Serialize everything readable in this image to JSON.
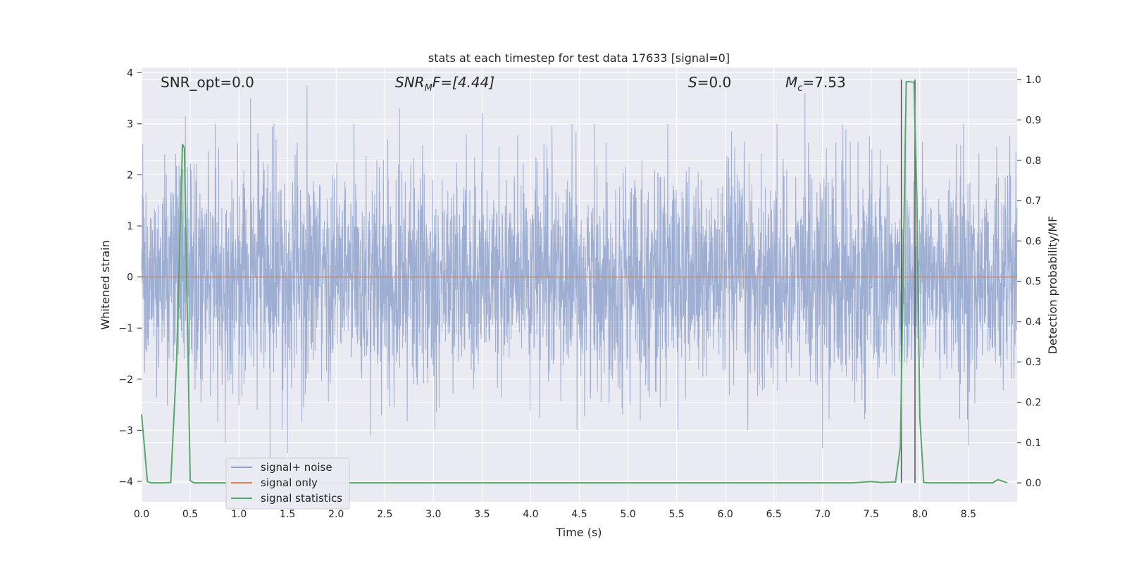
{
  "chart_data": {
    "type": "line",
    "title": "stats at each timestep for test data 17633 [signal=0]",
    "xlabel": "Time (s)",
    "ylabel": "Whitened strain",
    "y2label": "Detection probability/MF",
    "xlim": [
      0.0,
      9.0
    ],
    "ylim": [
      -4.4,
      4.1
    ],
    "y2lim": [
      -0.047,
      1.03
    ],
    "xticks": [
      "0.0",
      "0.5",
      "1.0",
      "1.5",
      "2.0",
      "2.5",
      "3.0",
      "3.5",
      "4.0",
      "4.5",
      "5.0",
      "5.5",
      "6.0",
      "6.5",
      "7.0",
      "7.5",
      "8.0",
      "8.5"
    ],
    "yticks": [
      "4",
      "3",
      "2",
      "1",
      "0",
      "−1",
      "−2",
      "−3",
      "−4"
    ],
    "y2ticks": [
      "1.0",
      "0.9",
      "0.8",
      "0.7",
      "0.6",
      "0.5",
      "0.4",
      "0.3",
      "0.2",
      "0.1",
      "0.0"
    ],
    "grid": true,
    "legend_position": "lower-left",
    "annotations": {
      "snr_opt": "SNR_opt=0.0",
      "snr_mf_main": "SNR",
      "snr_mf_sub": "M",
      "snr_mf_tail": "F=[4.44]",
      "s_label": "S",
      "s_value": "=0.0",
      "mc_main": "M",
      "mc_sub": "c",
      "mc_value": "=7.53"
    },
    "series": [
      {
        "name": "signal+ noise",
        "color": "#8fa3cc",
        "axis": "left",
        "description_points": "dense whitened noise, approx. gaussian with sigma ~1.05, spikes up to ~3.7 and down to ~-3.6",
        "x_range": [
          0.0,
          9.0
        ],
        "sigma": 1.05,
        "spikes": [
          {
            "x": 0.45,
            "y": 3.15
          },
          {
            "x": 1.12,
            "y": 3.5
          },
          {
            "x": 1.7,
            "y": 3.75
          },
          {
            "x": 2.65,
            "y": 3.3
          },
          {
            "x": 3.5,
            "y": 3.2
          },
          {
            "x": 6.82,
            "y": 3.6
          },
          {
            "x": 1.32,
            "y": -3.6
          },
          {
            "x": 1.5,
            "y": -3.45
          },
          {
            "x": 7.0,
            "y": -3.35
          },
          {
            "x": 8.5,
            "y": -3.3
          },
          {
            "x": 0.86,
            "y": -3.25
          },
          {
            "x": 2.35,
            "y": -3.1
          }
        ]
      },
      {
        "name": "signal only",
        "color": "#dd8452",
        "axis": "left",
        "x": [
          0.0,
          9.0
        ],
        "y": [
          0.0,
          0.0
        ]
      },
      {
        "name": "signal statistics",
        "color": "#55a868",
        "axis": "right",
        "x": [
          0.0,
          0.06,
          0.1,
          0.2,
          0.3,
          0.36,
          0.42,
          0.44,
          0.5,
          0.54,
          0.6,
          1.0,
          2.0,
          3.0,
          4.0,
          5.0,
          6.0,
          7.0,
          7.3,
          7.5,
          7.6,
          7.75,
          7.8,
          7.86,
          7.9,
          7.94,
          7.97,
          8.0,
          8.04,
          8.1,
          8.2,
          8.6,
          8.7,
          8.75,
          8.8,
          8.9
        ],
        "y": [
          0.17,
          0.003,
          0.0,
          0.0,
          0.001,
          0.3,
          0.84,
          0.83,
          0.005,
          0.0,
          0.0,
          0.0,
          0.0,
          0.0,
          0.0,
          0.0,
          0.0,
          0.0,
          0.0,
          0.003,
          0.001,
          0.002,
          0.09,
          0.995,
          0.995,
          0.993,
          0.7,
          0.16,
          0.001,
          0.0,
          0.0,
          0.0,
          0.0,
          0.0,
          0.008,
          0.0
        ]
      }
    ],
    "vertical_lines": [
      {
        "x": 7.81,
        "color": "#555555"
      },
      {
        "x": 7.95,
        "color": "#555555"
      }
    ]
  }
}
